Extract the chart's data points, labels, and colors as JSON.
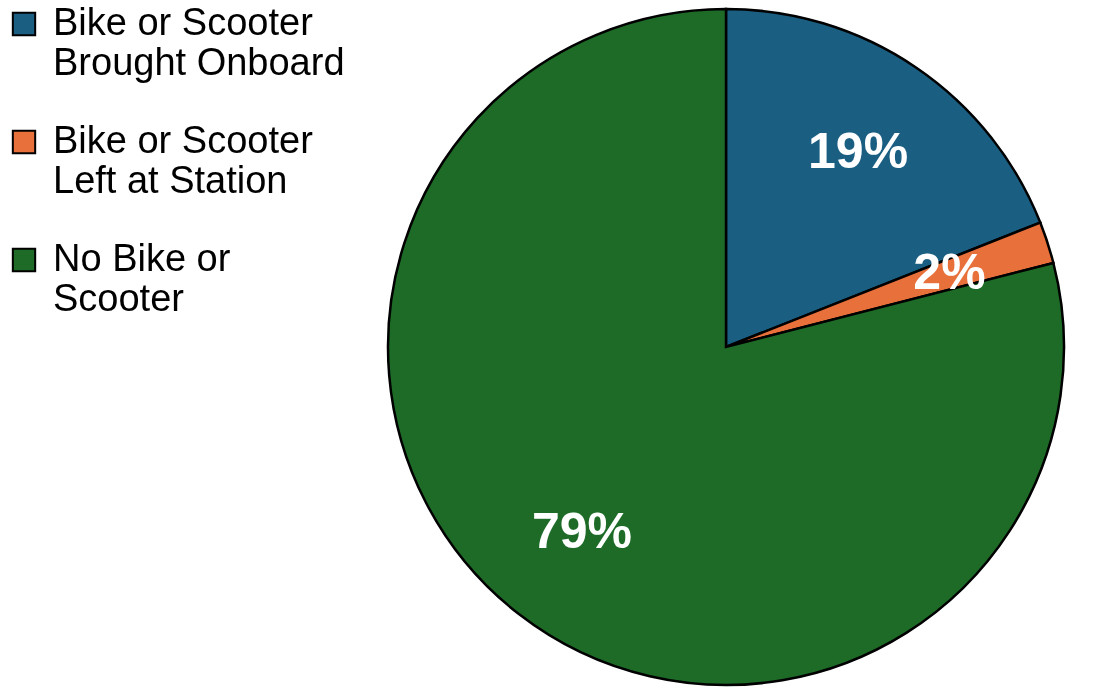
{
  "chart_data": {
    "type": "pie",
    "categories": [
      "Bike or Scooter Brought Onboard",
      "Bike or Scooter Left at Station",
      "No Bike or Scooter"
    ],
    "values": [
      19,
      2,
      79
    ],
    "colors": [
      "#1a5e82",
      "#e8703a",
      "#1d6b27"
    ],
    "value_labels": [
      "19%",
      "2%",
      "79%"
    ],
    "legend": "left"
  }
}
